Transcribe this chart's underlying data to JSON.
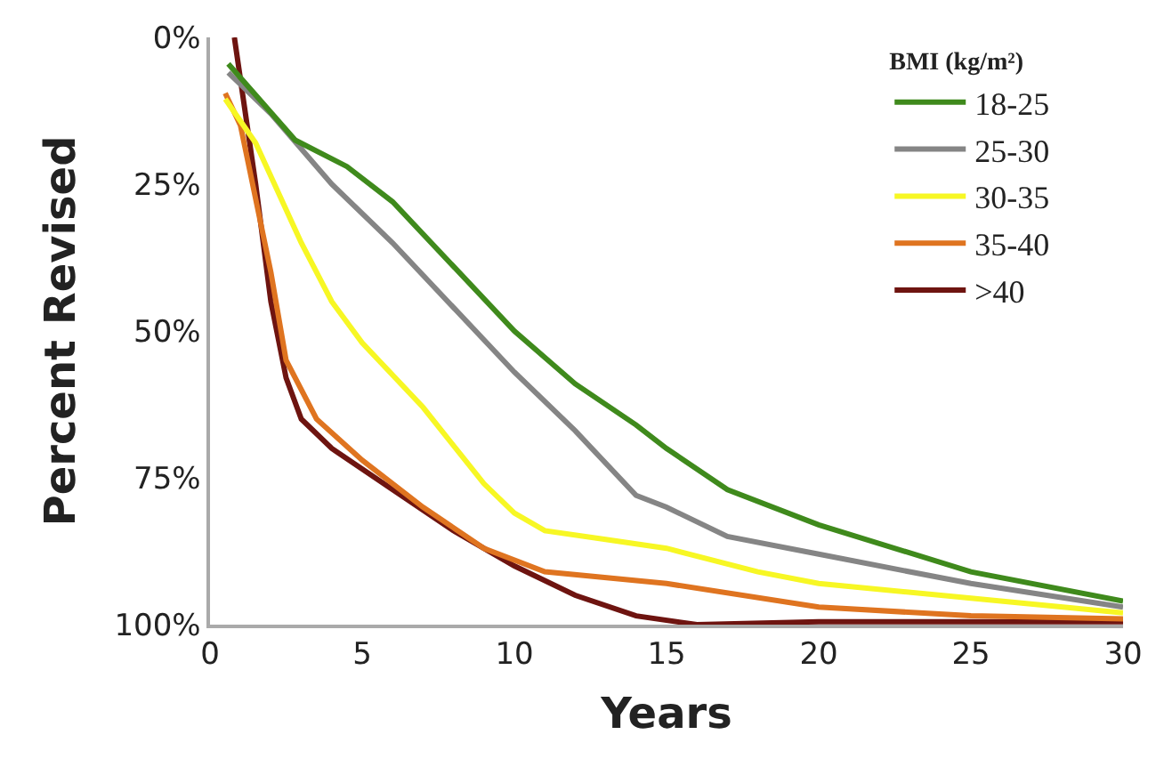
{
  "chart_data": {
    "type": "line",
    "xlabel": "Years",
    "ylabel": "Percent Revised",
    "legend_title": "BMI (kg/m²)",
    "legend": "top right",
    "grid": false,
    "marker": "none",
    "line_style": "solid",
    "xlim": [
      0,
      30
    ],
    "xticks": [
      0,
      5,
      10,
      15,
      20,
      25,
      30
    ],
    "ylim": [
      100,
      0
    ],
    "yticks": [
      {
        "value": 0,
        "label": "0%"
      },
      {
        "value": 25,
        "label": "25%"
      },
      {
        "value": 50,
        "label": "50%"
      },
      {
        "value": 75,
        "label": "75%"
      },
      {
        "value": 100,
        "label": "100%"
      }
    ],
    "series": [
      {
        "name": "18-25",
        "color": "#3f8a1c",
        "x": [
          0.6,
          2.8,
          4.5,
          6,
          8,
          10,
          12,
          14,
          15,
          17,
          20,
          25,
          30
        ],
        "values": [
          4.5,
          17.5,
          22,
          28,
          39,
          50,
          59,
          66,
          70,
          77,
          83,
          91,
          96
        ]
      },
      {
        "name": "25-30",
        "color": "#858585",
        "x": [
          0.6,
          2,
          4,
          6,
          8,
          10,
          12,
          14,
          15,
          17,
          20,
          25,
          30
        ],
        "values": [
          6,
          13,
          25,
          35,
          46,
          57,
          67,
          78,
          80,
          85,
          88,
          93,
          97
        ]
      },
      {
        "name": "30-35",
        "color": "#f7f724",
        "x": [
          0.5,
          1.5,
          3,
          4,
          5,
          7,
          9,
          10,
          11,
          13,
          15,
          18,
          20,
          25,
          30
        ],
        "values": [
          10.5,
          18,
          35,
          45,
          52,
          63,
          76,
          81,
          84,
          85.5,
          87,
          91,
          93,
          95.5,
          98
        ]
      },
      {
        "name": "35-40",
        "color": "#df7420",
        "x": [
          0.5,
          1,
          2,
          2.5,
          3.5,
          5,
          7,
          9,
          11,
          15,
          20,
          25,
          30
        ],
        "values": [
          9.5,
          15,
          40,
          55,
          65,
          72,
          80,
          87,
          91,
          93,
          97,
          98.5,
          99
        ]
      },
      {
        "name": ">40",
        "color": "#6e1410",
        "x": [
          0.8,
          1.5,
          2,
          2.5,
          3,
          4,
          6,
          8,
          10,
          12,
          14,
          16,
          20,
          30
        ],
        "values": [
          0,
          25,
          45,
          58,
          65,
          70,
          77,
          84,
          90,
          95,
          98.5,
          100,
          99.5,
          99.5
        ]
      }
    ]
  }
}
